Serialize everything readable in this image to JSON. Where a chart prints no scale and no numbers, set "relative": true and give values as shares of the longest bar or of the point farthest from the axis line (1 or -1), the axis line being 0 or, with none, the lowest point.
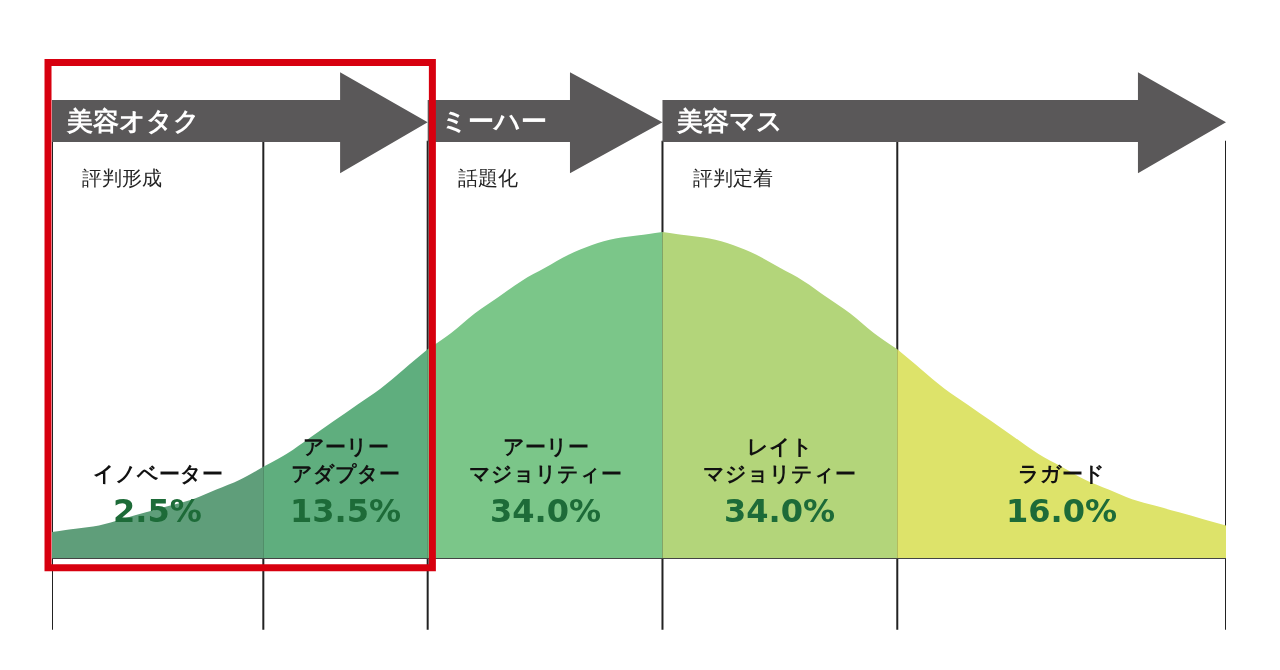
{
  "chart_data": {
    "type": "area",
    "relative": true,
    "legend": false,
    "grid": "x",
    "categories": [
      null,
      null,
      null,
      null,
      null,
      null,
      null,
      null,
      null,
      null,
      null,
      null,
      null,
      null,
      null,
      null,
      null,
      null,
      null,
      null,
      null,
      null,
      null,
      null,
      null,
      null,
      null,
      null,
      null,
      null,
      null,
      null,
      null,
      null,
      null,
      null,
      null,
      null,
      null,
      null,
      null,
      null,
      null,
      null,
      null,
      null,
      null,
      null,
      null,
      null,
      null
    ],
    "series": [
      {
        "name": "イノベーター",
        "color": "#5f9e7a",
        "values": [
          0.08,
          0.09,
          0.1,
          0.12,
          0.14,
          0.16,
          0.18,
          0.21,
          0.24,
          0.28,
          null,
          null,
          null,
          null,
          null,
          null,
          null,
          null,
          null,
          null,
          null,
          null,
          null,
          null,
          null,
          null,
          null,
          null,
          null,
          null,
          null,
          null,
          null,
          null,
          null,
          null,
          null,
          null,
          null,
          null,
          null,
          null,
          null,
          null,
          null,
          null,
          null,
          null,
          null,
          null,
          null
        ]
      },
      {
        "name": "アーリーアダプター",
        "color": "#5fae7e",
        "values": [
          null,
          null,
          null,
          null,
          null,
          null,
          null,
          null,
          null,
          0.28,
          0.32,
          0.37,
          0.42,
          0.47,
          0.52,
          0.58,
          0.64,
          null,
          null,
          null,
          null,
          null,
          null,
          null,
          null,
          null,
          null,
          null,
          null,
          null,
          null,
          null,
          null,
          null,
          null,
          null,
          null,
          null,
          null,
          null,
          null,
          null,
          null,
          null,
          null,
          null,
          null,
          null,
          null,
          null,
          null
        ]
      },
      {
        "name": "アーリーマジョリティー",
        "color": "#7bc689",
        "values": [
          null,
          null,
          null,
          null,
          null,
          null,
          null,
          null,
          null,
          null,
          null,
          null,
          null,
          null,
          null,
          null,
          0.64,
          0.69,
          0.75,
          0.8,
          0.85,
          0.89,
          0.93,
          0.96,
          0.98,
          0.99,
          1.0,
          null,
          null,
          null,
          null,
          null,
          null,
          null,
          null,
          null,
          null,
          null,
          null,
          null,
          null,
          null,
          null,
          null,
          null,
          null,
          null,
          null,
          null,
          null,
          null
        ]
      },
      {
        "name": "レイトマジョリティー",
        "color": "#b3d57a",
        "values": [
          null,
          null,
          null,
          null,
          null,
          null,
          null,
          null,
          null,
          null,
          null,
          null,
          null,
          null,
          null,
          null,
          null,
          null,
          null,
          null,
          null,
          null,
          null,
          null,
          null,
          null,
          1.0,
          0.99,
          0.98,
          0.96,
          0.93,
          0.89,
          0.85,
          0.8,
          0.75,
          0.69,
          0.64,
          null,
          null,
          null,
          null,
          null,
          null,
          null,
          null,
          null,
          null,
          null,
          null,
          null,
          null
        ]
      },
      {
        "name": "ラガード",
        "color": "#dde36a",
        "values": [
          null,
          null,
          null,
          null,
          null,
          null,
          null,
          null,
          null,
          null,
          null,
          null,
          null,
          null,
          null,
          null,
          null,
          null,
          null,
          null,
          null,
          null,
          null,
          null,
          null,
          null,
          null,
          null,
          null,
          null,
          null,
          null,
          null,
          null,
          null,
          null,
          0.64,
          0.58,
          0.52,
          0.47,
          0.42,
          0.37,
          0.32,
          0.28,
          0.24,
          0.21,
          0.18,
          0.16,
          0.14,
          0.12,
          0.1
        ]
      }
    ],
    "annotations": [
      "2.5%",
      "13.5%",
      "34.0%",
      "34.0%",
      "16.0%",
      "美容オタク",
      "ミーハー",
      "美容マス",
      "評判形成",
      "話題化",
      "評判定着"
    ]
  }
}
